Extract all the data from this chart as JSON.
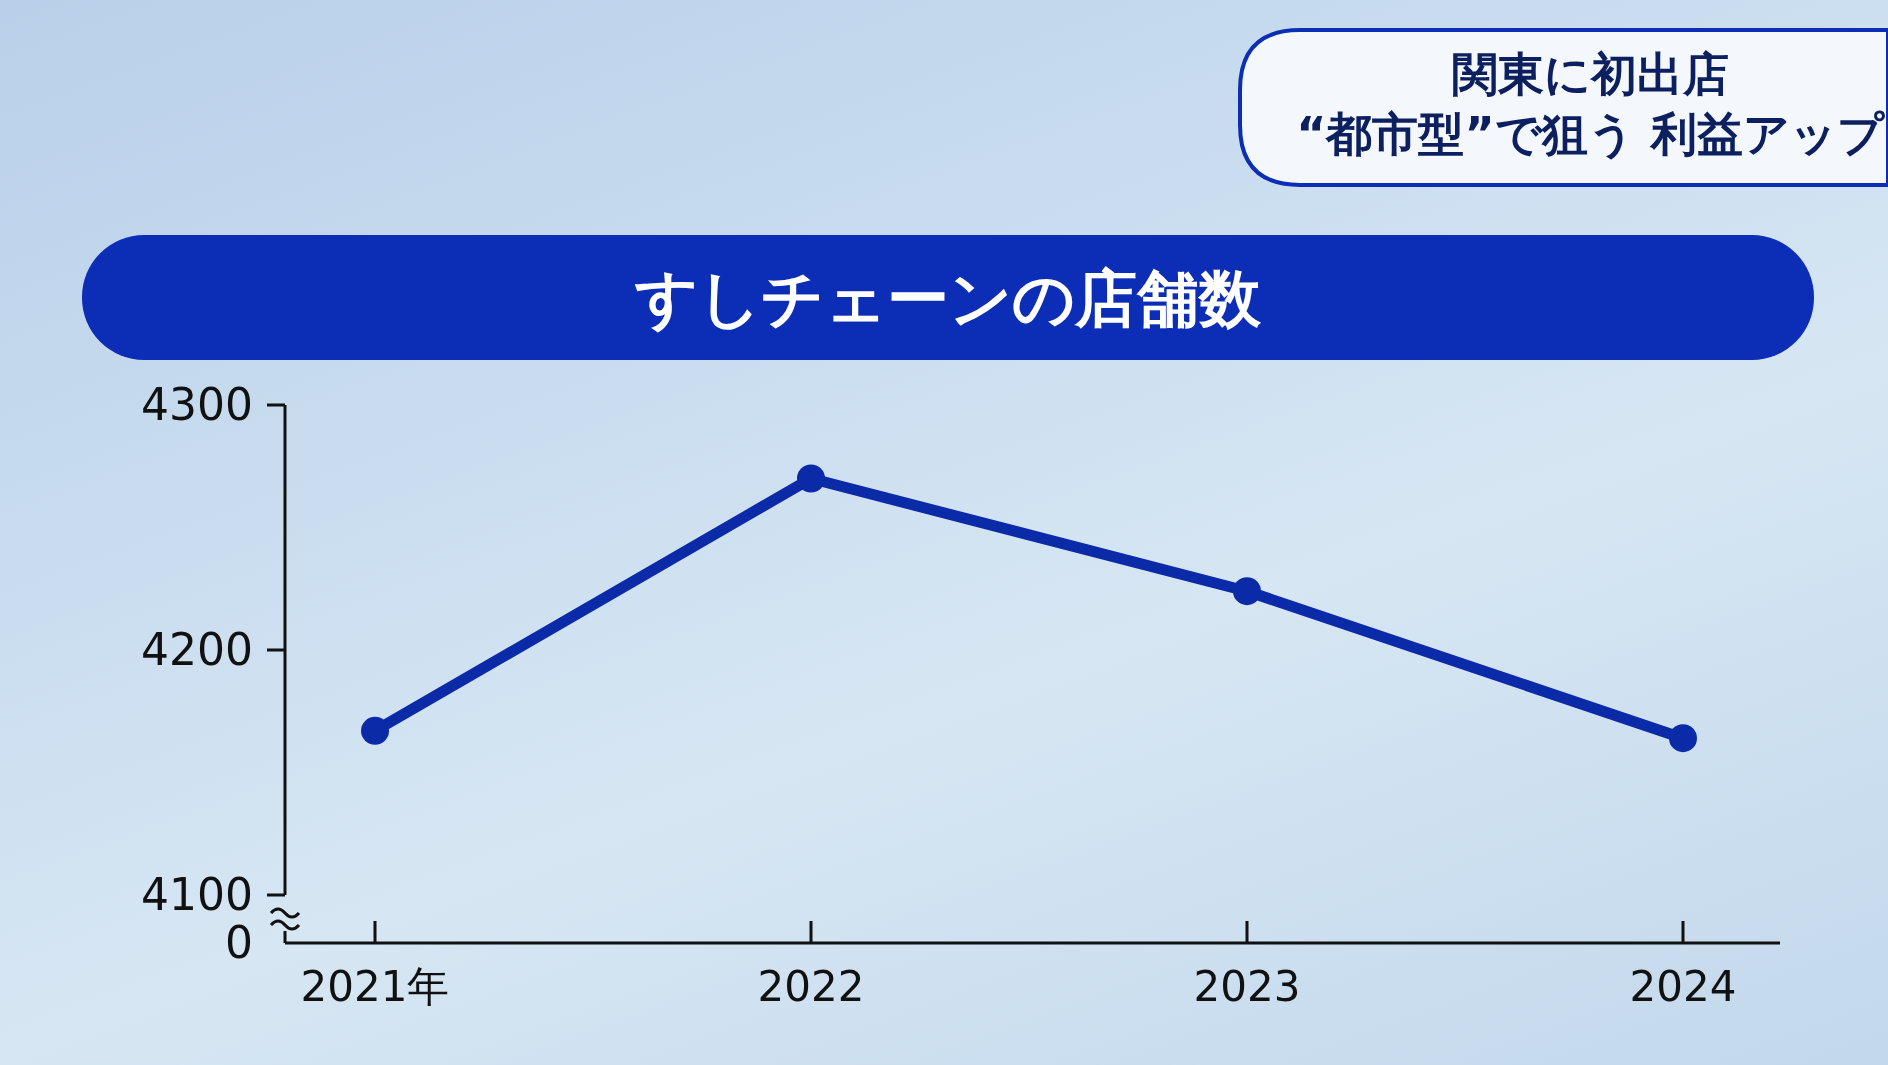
{
  "chart_data": {
    "type": "line",
    "title": "すしチェーンの店舗数",
    "annotations": [
      "0",
      "関東に初出店",
      "“都市型”で狙う 利益アップ"
    ],
    "categories": [
      "2021年",
      "2022",
      "2023",
      "2024"
    ],
    "series": [
      {
        "color": "#0b2aa8",
        "values": [
          4167,
          4270,
          4224,
          4164
        ]
      }
    ],
    "ylim": [
      4100,
      4300
    ],
    "yticks": [
      4100,
      4200,
      4300
    ],
    "marker": "circle",
    "line_style": "solid",
    "grid": false
  }
}
